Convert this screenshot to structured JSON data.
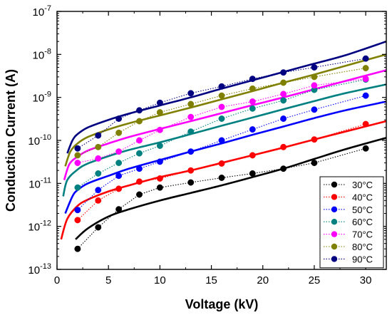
{
  "chart_data": {
    "type": "scatter",
    "title": "",
    "xlabel": "Voltage (kV)",
    "ylabel": "Conduction Current (A)",
    "xlim": [
      0,
      32
    ],
    "ylim": [
      1e-13,
      1e-07
    ],
    "yscale": "log",
    "grid": false,
    "legend_position": "bottom-right",
    "x_ticks": [
      0,
      5,
      10,
      15,
      20,
      25,
      30
    ],
    "x_tick_labels": [
      "0",
      "5",
      "10",
      "15",
      "20",
      "25",
      "30"
    ],
    "y_ticks": [
      1e-13,
      1e-12,
      1e-11,
      1e-10,
      1e-09,
      1e-08,
      1e-07
    ],
    "y_tick_labels": [
      {
        "base": "10",
        "exp": "-13"
      },
      {
        "base": "10",
        "exp": "-12"
      },
      {
        "base": "10",
        "exp": "-11"
      },
      {
        "base": "10",
        "exp": "-10"
      },
      {
        "base": "10",
        "exp": "-9"
      },
      {
        "base": "10",
        "exp": "-8"
      },
      {
        "base": "10",
        "exp": "-7"
      }
    ],
    "series": [
      {
        "name": "30°C",
        "color": "#000000",
        "x": [
          2,
          4,
          6,
          8,
          10,
          13,
          16,
          19,
          22,
          25,
          30
        ],
        "y": [
          3e-13,
          9.5e-13,
          2.5e-12,
          5.5e-12,
          8e-12,
          1.05e-11,
          1.35e-11,
          1.7e-11,
          2.2e-11,
          3e-11,
          6.5e-11
        ],
        "fit_x": [
          1.8,
          3,
          5,
          7,
          10,
          13,
          16,
          19,
          22,
          25,
          28,
          32
        ],
        "fit_y": [
          5e-13,
          9e-13,
          1.7e-12,
          2.5e-12,
          4e-12,
          6e-12,
          9e-12,
          1.4e-11,
          2.2e-11,
          3.7e-11,
          6.2e-11,
          1.15e-10
        ]
      },
      {
        "name": "40°C",
        "color": "#ff0000",
        "x": [
          2,
          4,
          6,
          8,
          10,
          13,
          16,
          19,
          22,
          25,
          30
        ],
        "y": [
          1.4e-12,
          4e-12,
          7.5e-12,
          1.1e-11,
          1.3e-11,
          2e-11,
          2.9e-11,
          4.5e-11,
          7e-11,
          1.05e-10,
          2.4e-10
        ],
        "fit_x": [
          0.4,
          1,
          2,
          3,
          5,
          7,
          10,
          13,
          16,
          19,
          22,
          25,
          28,
          32
        ],
        "fit_y": [
          5e-13,
          1.5e-12,
          3e-12,
          4.2e-12,
          6.5e-12,
          9e-12,
          1.4e-11,
          2e-11,
          3e-11,
          4.5e-11,
          6.8e-11,
          1.05e-10,
          1.6e-10,
          2.8e-10
        ]
      },
      {
        "name": "50°C",
        "color": "#0000ff",
        "x": [
          2,
          4,
          6,
          8,
          10,
          13,
          16,
          19,
          22,
          25,
          30
        ],
        "y": [
          2.4e-12,
          7e-12,
          1.5e-11,
          2.2e-11,
          3.2e-11,
          5.5e-11,
          1e-10,
          1.8e-10,
          3.2e-10,
          5.2e-10,
          1.1e-09
        ],
        "fit_x": [
          0.8,
          1.5,
          2,
          3,
          5,
          7,
          10,
          13,
          16,
          19,
          22,
          25,
          28,
          32
        ],
        "fit_y": [
          2e-12,
          5e-12,
          7e-12,
          1e-11,
          1.5e-11,
          2.2e-11,
          3.5e-11,
          5.5e-11,
          8.5e-11,
          1.35e-10,
          2.1e-10,
          3.3e-10,
          5e-10,
          8e-10
        ]
      },
      {
        "name": "60°C",
        "color": "#008080",
        "x": [
          2,
          4,
          6,
          8,
          10,
          13,
          16,
          19,
          22,
          25,
          30
        ],
        "y": [
          8e-12,
          1.7e-11,
          3e-11,
          5e-11,
          7.5e-11,
          1.6e-10,
          3.2e-10,
          5.5e-10,
          8.5e-10,
          1.5e-09,
          2.6e-09
        ],
        "fit_x": [
          0.6,
          1,
          2,
          3,
          5,
          7,
          10,
          13,
          16,
          19,
          22,
          25,
          28,
          32
        ],
        "fit_y": [
          5e-12,
          1.2e-11,
          2.1e-11,
          2.9e-11,
          4.3e-11,
          6e-11,
          9e-11,
          1.4e-10,
          2.2e-10,
          3.4e-10,
          5.3e-10,
          8.2e-10,
          1.25e-09,
          2e-09
        ]
      },
      {
        "name": "70°C",
        "color": "#ff00ff",
        "x": [
          2,
          4,
          6,
          8,
          10,
          13,
          16,
          19,
          22,
          25,
          30
        ],
        "y": [
          3e-11,
          3.8e-11,
          5.5e-11,
          1e-10,
          1.75e-10,
          3.5e-10,
          6e-10,
          8e-10,
          1.2e-09,
          1.9e-09,
          2.7e-09
        ],
        "fit_x": [
          0.7,
          1.2,
          2,
          3,
          5,
          7,
          10,
          13,
          16,
          19,
          22,
          25,
          28,
          32
        ],
        "fit_y": [
          1.2e-11,
          2.8e-11,
          4.2e-11,
          5.8e-11,
          8.5e-11,
          1.2e-10,
          1.85e-10,
          2.8e-10,
          4.3e-10,
          6.6e-10,
          1e-09,
          1.55e-09,
          2.4e-09,
          4.3e-09
        ]
      },
      {
        "name": "80°C",
        "color": "#808000",
        "x": [
          2,
          4,
          6,
          8,
          10,
          13,
          16,
          19,
          22,
          25,
          30
        ],
        "y": [
          4.5e-11,
          7e-11,
          1.5e-10,
          2.8e-10,
          4.5e-10,
          7e-10,
          1.1e-09,
          1.6e-09,
          2.2e-09,
          3e-09,
          4.8e-09
        ],
        "fit_x": [
          0.8,
          1.3,
          2,
          3,
          5,
          7,
          10,
          13,
          16,
          19,
          22,
          25,
          28,
          32
        ],
        "fit_y": [
          2.5e-11,
          5.5e-11,
          8.5e-11,
          1.2e-10,
          1.8e-10,
          2.5e-10,
          3.8e-10,
          5.8e-10,
          9e-10,
          1.4e-09,
          2.2e-09,
          3.4e-09,
          5.4e-09,
          1e-08
        ]
      },
      {
        "name": "90°C",
        "color": "#000080",
        "x": [
          2,
          4,
          6,
          8,
          10,
          13,
          16,
          19,
          22,
          25,
          30
        ],
        "y": [
          6.5e-11,
          1.3e-10,
          3.2e-10,
          5e-10,
          7.5e-10,
          1.25e-09,
          1.8e-09,
          2.7e-09,
          3.8e-09,
          5e-09,
          8e-09
        ],
        "fit_x": [
          1,
          1.5,
          2,
          3,
          5,
          7,
          10,
          13,
          16,
          19,
          22,
          25,
          28,
          32
        ],
        "fit_y": [
          5e-11,
          1e-10,
          1.4e-10,
          2e-10,
          3e-10,
          4.2e-10,
          6.5e-10,
          1e-09,
          1.6e-09,
          2.5e-09,
          3.9e-09,
          6.1e-09,
          9.5e-09,
          2e-08
        ]
      }
    ]
  }
}
